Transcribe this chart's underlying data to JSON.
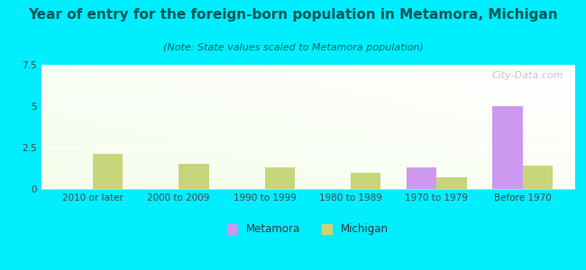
{
  "title": "Year of entry for the foreign-born population in Metamora, Michigan",
  "subtitle": "(Note: State values scaled to Metamora population)",
  "categories": [
    "2010 or later",
    "2000 to 2009",
    "1990 to 1999",
    "1980 to 1989",
    "1970 to 1979",
    "Before 1970"
  ],
  "metamora_values": [
    0,
    0,
    0,
    0,
    1.3,
    5.0
  ],
  "michigan_values": [
    2.1,
    1.5,
    1.3,
    1.0,
    0.7,
    1.4
  ],
  "metamora_color": "#cc99ee",
  "michigan_color": "#c8d47a",
  "background_outer": "#00eeff",
  "ylim": [
    0,
    7.5
  ],
  "yticks": [
    0,
    2.5,
    5,
    7.5
  ],
  "bar_width": 0.35,
  "title_fontsize": 11,
  "subtitle_fontsize": 8,
  "tick_fontsize": 7.5,
  "legend_fontsize": 8.5,
  "watermark_text": "City-Data.com",
  "title_color": "#005555",
  "subtitle_color": "#006666"
}
